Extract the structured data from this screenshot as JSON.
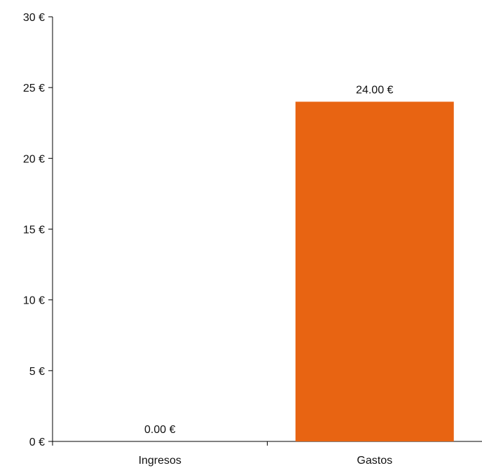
{
  "chart_data": {
    "type": "bar",
    "categories": [
      "Ingresos",
      "Gastos"
    ],
    "values": [
      0,
      24
    ],
    "data_labels": [
      "0.00 €",
      "24.00 €"
    ],
    "ylim": [
      0,
      30
    ],
    "yticks": [
      0,
      5,
      10,
      15,
      20,
      25,
      30
    ],
    "ytick_labels": [
      "0 €",
      "5 €",
      "10 €",
      "15 €",
      "20 €",
      "25 €",
      "30 €"
    ],
    "bar_color": "#E86412",
    "grid": false,
    "title": "",
    "xlabel": "",
    "ylabel": ""
  }
}
